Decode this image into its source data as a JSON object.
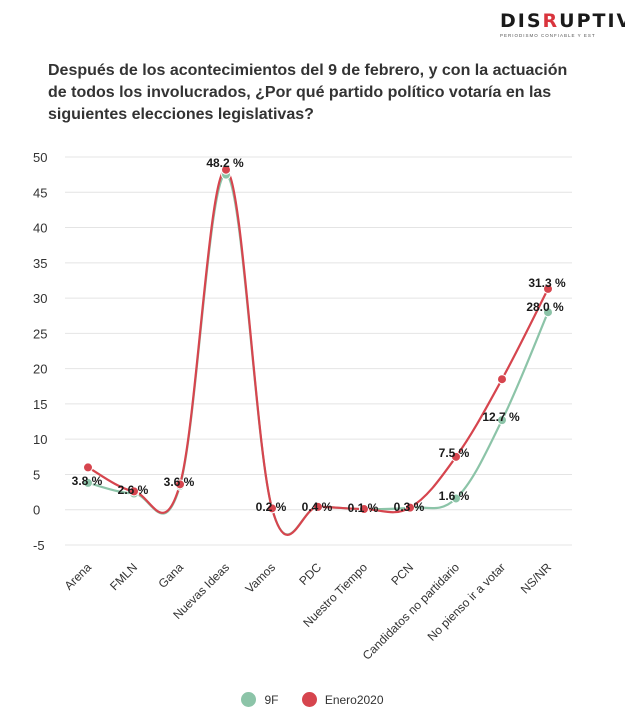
{
  "logo": {
    "text_pre": "DIS",
    "text_hl": "R",
    "text_post": "UPTIVA",
    "subtitle": "PERIODISMO CONFIABLE Y ESTABLECIDO"
  },
  "title": "Después de los acontecimientos del 9 de febrero, y con la actuación de todos los involucrados, ¿Por qué partido político votaría en las siguientes elecciones legislativas?",
  "colors": {
    "9F": "#8cc4a8",
    "Enero2020": "#d6454e",
    "grid": "#e4e4e4"
  },
  "chart_data": {
    "type": "line",
    "title": "Después de los acontecimientos del 9 de febrero, y con la actuación de todos los involucrados, ¿Por qué partido político votaría en las siguientes elecciones legislativas?",
    "categories": [
      "Arena",
      "FMLN",
      "Gana",
      "Nuevas Ideas",
      "Vamos",
      "PDC",
      "Nuestro Tiempo",
      "PCN",
      "Candidatos no partidario",
      "No pienso ir a votar",
      "NS/NR"
    ],
    "series": [
      {
        "name": "9F",
        "values": [
          3.8,
          2.3,
          3.4,
          47.5,
          0.2,
          0.4,
          0.1,
          0.3,
          1.6,
          12.7,
          28.0
        ]
      },
      {
        "name": "Enero2020",
        "values": [
          6.0,
          2.6,
          3.6,
          48.2,
          0.2,
          0.4,
          0.1,
          0.3,
          7.5,
          18.5,
          31.3
        ]
      }
    ],
    "data_labels": [
      "3.8 %",
      "2.6 %",
      "3.6 %",
      "48.2 %",
      "0.2 %",
      "0.4 %",
      "0.1 %",
      "0.3 %",
      "7.5 %",
      "1.6 %",
      "12.7 %",
      "31.3 %",
      "28.0 %"
    ],
    "yticks": [
      -5,
      0,
      5,
      10,
      15,
      20,
      25,
      30,
      35,
      40,
      45,
      50
    ],
    "ylim": [
      -5,
      50
    ],
    "grid": true,
    "legend": "bottom-center"
  }
}
